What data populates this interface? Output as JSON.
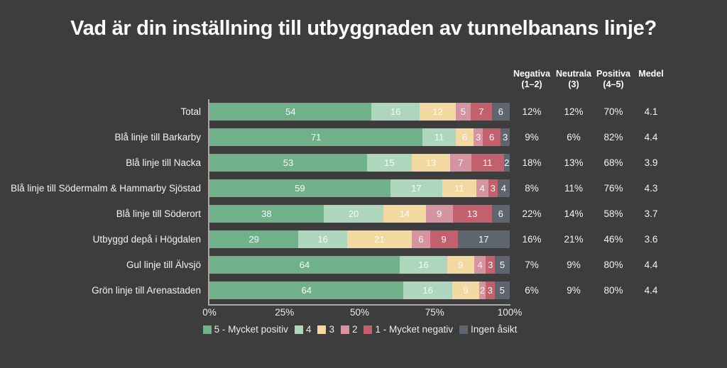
{
  "title": "Vad är din inställning till utbyggnaden av tunnelbanans linje?",
  "colors": {
    "background": "#3d3d3d",
    "axis": "#a8a8a8",
    "text": "#f2f2f2"
  },
  "chart_data": {
    "type": "bar",
    "variant": "horizontal-stacked-100",
    "title": "Vad är din inställning till utbyggnaden av tunnelbanans linje?",
    "categories": [
      "Total",
      "Blå linje till Barkarby",
      "Blå linje till Nacka",
      "Blå linje till Södermalm & Hammarby Sjöstad",
      "Blå linje till Söderort",
      "Utbyggd depå i Högdalen",
      "Gul linje till Älvsjö",
      "Grön linje till Arenastaden"
    ],
    "series": [
      {
        "name": "5 - Mycket positiv",
        "color": "#71b189",
        "values": [
          54,
          71,
          53,
          59,
          38,
          29,
          64,
          64
        ]
      },
      {
        "name": "4",
        "color": "#aed6bc",
        "values": [
          16,
          11,
          15,
          17,
          20,
          16,
          16,
          16
        ]
      },
      {
        "name": "3",
        "color": "#f1d9a1",
        "values": [
          12,
          6,
          13,
          11,
          14,
          21,
          9,
          9
        ]
      },
      {
        "name": "2",
        "color": "#d494a0",
        "values": [
          5,
          3,
          7,
          4,
          9,
          6,
          4,
          2
        ]
      },
      {
        "name": "1 - Mycket negativ",
        "color": "#c2606e",
        "values": [
          7,
          6,
          11,
          3,
          13,
          9,
          3,
          3
        ]
      },
      {
        "name": "Ingen åsikt",
        "color": "#5d666f",
        "values": [
          6,
          3,
          2,
          4,
          6,
          17,
          5,
          5
        ]
      }
    ],
    "x_ticks": [
      "0%",
      "25%",
      "50%",
      "75%",
      "100%"
    ],
    "xlim": [
      0,
      100
    ],
    "grid": false,
    "legend_position": "bottom",
    "summary_table": {
      "columns": [
        "Negativa\n(1–2)",
        "Neutrala\n(3)",
        "Positiva\n(4–5)",
        "Medel"
      ],
      "rows": [
        [
          "12%",
          "12%",
          "70%",
          "4.1"
        ],
        [
          "9%",
          "6%",
          "82%",
          "4.4"
        ],
        [
          "18%",
          "13%",
          "68%",
          "3.9"
        ],
        [
          "8%",
          "11%",
          "76%",
          "4.3"
        ],
        [
          "22%",
          "14%",
          "58%",
          "3.7"
        ],
        [
          "16%",
          "21%",
          "46%",
          "3.6"
        ],
        [
          "7%",
          "9%",
          "80%",
          "4.4"
        ],
        [
          "6%",
          "9%",
          "80%",
          "4.4"
        ]
      ]
    }
  }
}
